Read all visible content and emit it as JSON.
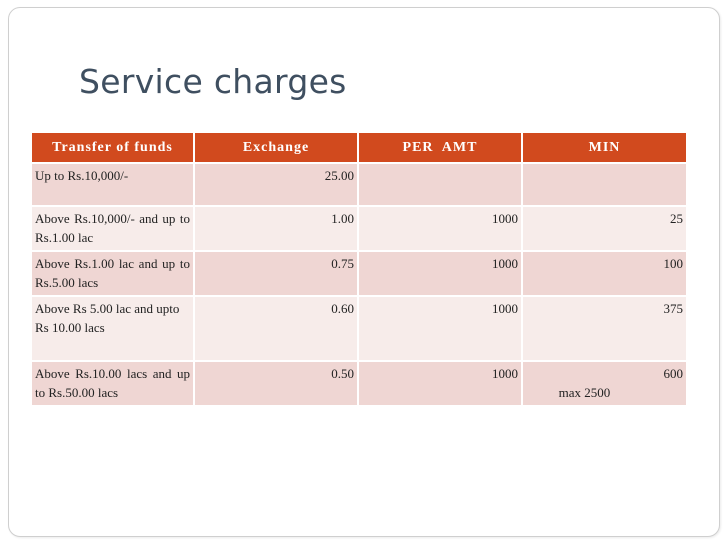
{
  "slide": {
    "title": "Service charges"
  },
  "table": {
    "headers": [
      "Transfer of funds",
      "Exchange",
      "PER  AMT",
      "MIN"
    ],
    "rows": [
      {
        "transfer": "Up to Rs.10,000/-",
        "exchange": "25.00",
        "per_amt": "",
        "min": "",
        "min_note": ""
      },
      {
        "transfer": "Above Rs.10,000/- and up to Rs.1.00 lac",
        "exchange": "1.00",
        "per_amt": "1000",
        "min": "25",
        "min_note": ""
      },
      {
        "transfer": "Above Rs.1.00 lac and up to Rs.5.00 lacs",
        "exchange": "0.75",
        "per_amt": "1000",
        "min": "100",
        "min_note": ""
      },
      {
        "transfer": "Above Rs 5.00 lac and upto\nRs 10.00 lacs",
        "exchange": "0.60",
        "per_amt": "1000",
        "min": "375",
        "min_note": ""
      },
      {
        "transfer": "Above Rs.10.00 lacs and up to Rs.50.00 lacs",
        "exchange": "0.50",
        "per_amt": "1000",
        "min": "600",
        "min_note": "max 2500"
      }
    ]
  },
  "colors": {
    "header_bg": "#d14a1e",
    "row_odd": "#efd6d3",
    "row_even": "#f7ecea",
    "title": "#3f4f60"
  }
}
